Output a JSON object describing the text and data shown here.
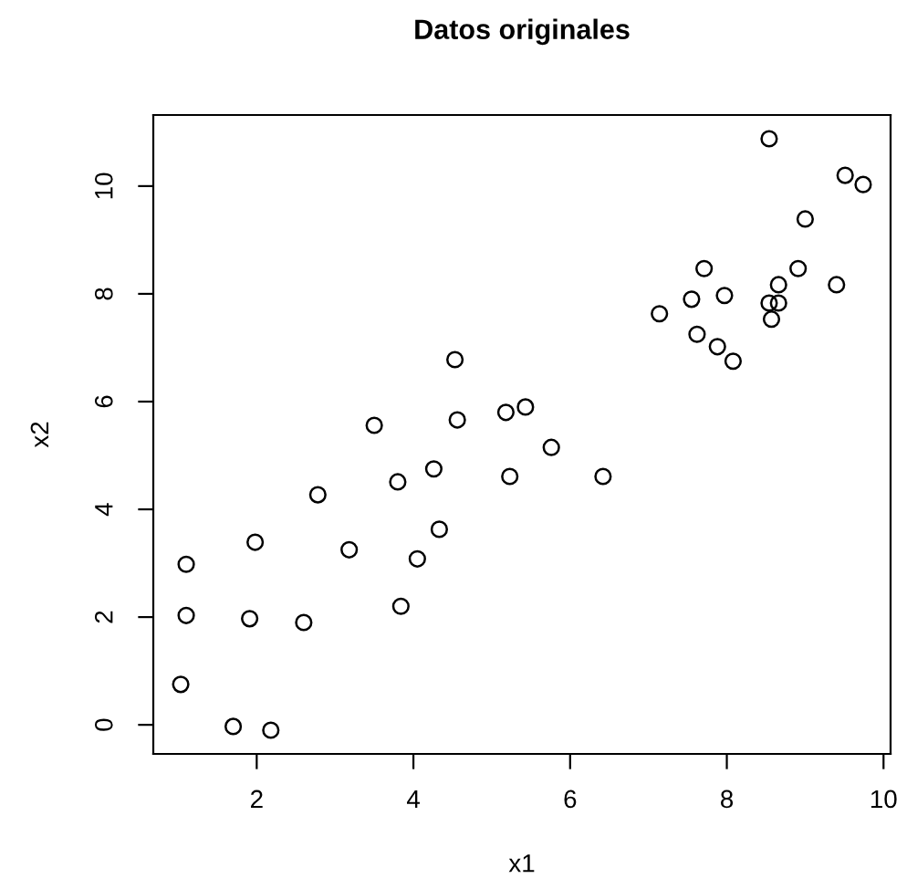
{
  "chart_data": {
    "type": "scatter",
    "title": "Datos originales",
    "xlabel": "x1",
    "ylabel": "x2",
    "marker": "circle",
    "color": "#000000",
    "grid": false,
    "legend": false,
    "x": [
      1.03,
      1.7,
      2.18,
      1.1,
      1.1,
      1.91,
      1.98,
      2.6,
      2.78,
      3.18,
      3.5,
      3.8,
      3.84,
      4.05,
      4.26,
      4.33,
      4.53,
      4.56,
      5.18,
      5.23,
      5.43,
      5.76,
      6.42,
      7.14,
      7.55,
      7.62,
      7.71,
      7.88,
      7.97,
      8.08,
      8.57,
      8.54,
      8.66,
      8.66,
      8.91,
      9.0,
      9.4,
      9.51,
      9.74,
      8.54
    ],
    "values": [
      0.75,
      -0.03,
      -0.1,
      2.03,
      2.98,
      1.97,
      3.39,
      1.9,
      4.27,
      3.25,
      5.56,
      4.51,
      2.2,
      3.08,
      4.75,
      3.63,
      6.78,
      5.66,
      5.8,
      4.61,
      5.9,
      5.15,
      4.61,
      7.63,
      7.9,
      7.25,
      8.47,
      7.02,
      7.97,
      6.75,
      7.53,
      7.83,
      7.83,
      8.17,
      8.47,
      9.39,
      8.17,
      10.2,
      10.03,
      10.88
    ],
    "xlim": [
      0.68,
      10.09
    ],
    "ylim": [
      -0.54,
      11.32
    ],
    "xticks": [
      2,
      4,
      6,
      8,
      10
    ],
    "yticks": [
      0,
      2,
      4,
      6,
      8,
      10
    ]
  }
}
